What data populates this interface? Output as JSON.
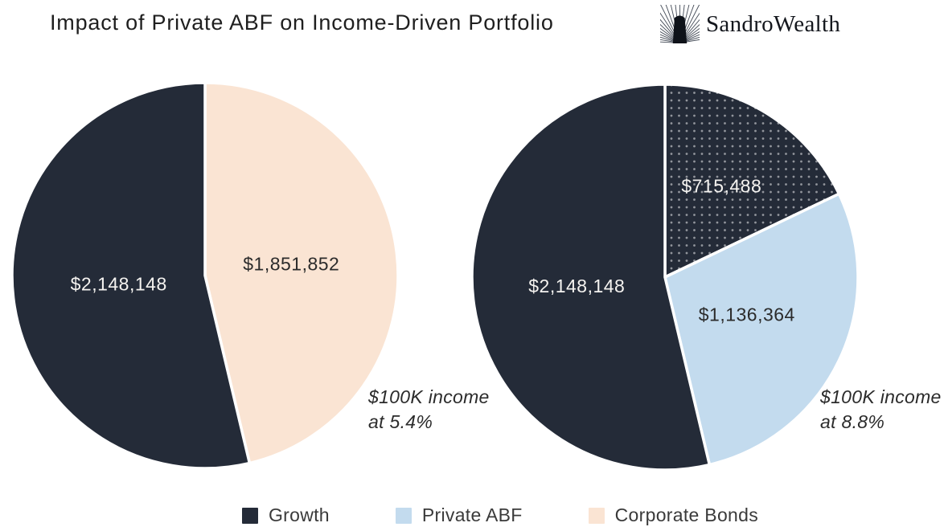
{
  "header": {
    "title": "Impact of Private ABF on Income-Driven Portfolio",
    "brand": "SandroWealth"
  },
  "colors": {
    "growth": "#242B38",
    "private_abf": "#C3DBEE",
    "corporate_bonds": "#FAE4D3",
    "label_light": "#F5F3F0",
    "label_dark": "#2B2B2B",
    "background": "#FFFFFF",
    "slice_separator": "#FFFFFF"
  },
  "legend": {
    "position": "bottom",
    "items": [
      {
        "label": "Growth",
        "color": "#242B38"
      },
      {
        "label": "Private ABF",
        "color": "#C3DBEE"
      },
      {
        "label": "Corporate Bonds",
        "color": "#FAE4D3"
      }
    ]
  },
  "chart_data": [
    {
      "type": "pie",
      "name": "portfolio-without-private-abf",
      "total": 4000000,
      "start_angle_deg": 0,
      "direction": "clockwise-from-top",
      "slices": [
        {
          "series": "Corporate Bonds",
          "value": 1851852,
          "label": "$1,851,852",
          "color": "#FAE4D3",
          "pattern": "solid",
          "label_color": "#2B2B2B",
          "label_radius": 0.45
        },
        {
          "series": "Growth",
          "value": 2148148,
          "label": "$2,148,148",
          "color": "#242B38",
          "pattern": "solid",
          "label_color": "#F5F3F0",
          "label_radius": 0.45
        }
      ],
      "annotation": {
        "line1": "$100K income",
        "line2": "at 5.4%"
      }
    },
    {
      "type": "pie",
      "name": "portfolio-with-private-abf",
      "total": 4000000,
      "start_angle_deg": 0,
      "direction": "clockwise-from-top",
      "slices": [
        {
          "series": "Growth",
          "value": 715488,
          "label": "$715,488",
          "color": "#242B38",
          "pattern": "dots",
          "label_color": "#F5F3F0",
          "label_radius": 0.55
        },
        {
          "series": "Private ABF",
          "value": 1136364,
          "label": "$1,136,364",
          "color": "#C3DBEE",
          "pattern": "solid",
          "label_color": "#2B2B2B",
          "label_radius": 0.47
        },
        {
          "series": "Growth",
          "value": 2148148,
          "label": "$2,148,148",
          "color": "#242B38",
          "pattern": "solid",
          "label_color": "#F5F3F0",
          "label_radius": 0.46
        }
      ],
      "annotation": {
        "line1": "$100K income",
        "line2": "at 8.8%"
      }
    }
  ]
}
